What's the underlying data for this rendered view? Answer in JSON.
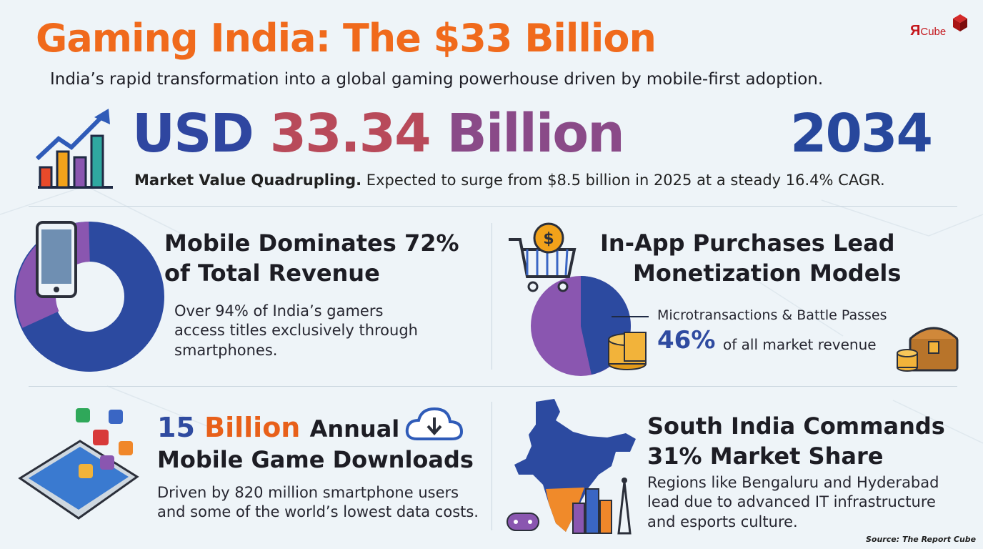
{
  "header": {
    "title": "Gaming India: The $33 Billion",
    "subtitle": "India’s rapid transformation into a global gaming powerhouse driven by mobile-first adoption."
  },
  "logo": {
    "mark": "Я",
    "word": "Cube",
    "color": "#c4161c"
  },
  "hero": {
    "usd_prefix": "USD",
    "value": "33.34",
    "unit": "Billion",
    "year": "2034",
    "desc_strong": "Market Value Quadrupling.",
    "desc_rest": "Expected to surge from $8.5 billion in 2025 at a steady 16.4% CAGR.",
    "icon": "bar-chart-growth-icon"
  },
  "mobile": {
    "title_line1": "Mobile Dominates 72%",
    "title_line2": "of Total Revenue",
    "body_line1": "Over 94% of India’s gamers",
    "body_line2": "access titles exclusively through",
    "body_line3": "smartphones.",
    "share": 0.72,
    "icon": "smartphone-icon"
  },
  "inapp": {
    "title_line1": "In-App Purchases Lead",
    "title_line2": "Monetization Models",
    "label": "Microtransactions & Battle Passes",
    "pct": "46%",
    "pct_rest": "of all market revenue",
    "share": 0.46,
    "icons": [
      "shopping-cart-icon",
      "coin-stack-icon",
      "treasure-chest-icon"
    ]
  },
  "downloads": {
    "num_a": "15",
    "num_b": "Billion",
    "title_rest": "Annual",
    "title_line2": "Mobile Game Downloads",
    "body_line1": "Driven by 820 million smartphone users",
    "body_line2": "and some of the world’s lowest data costs.",
    "icons": [
      "phone-with-apps-icon",
      "cloud-download-icon"
    ]
  },
  "south": {
    "title_line1": "South India Commands",
    "title_line2": "31% Market Share",
    "body_line1": "Regions like Bengaluru and Hyderabad",
    "body_line2": "lead due to advanced IT infrastructure",
    "body_line3": "and esports culture.",
    "icons": [
      "india-map-icon",
      "gamepad-icon",
      "city-skyline-icon"
    ]
  },
  "source": "Source: The Report Cube",
  "colors": {
    "orange": "#f06a1c",
    "navy": "#2f46a0",
    "purple": "#8a56b0",
    "background": "#eef4f8"
  }
}
